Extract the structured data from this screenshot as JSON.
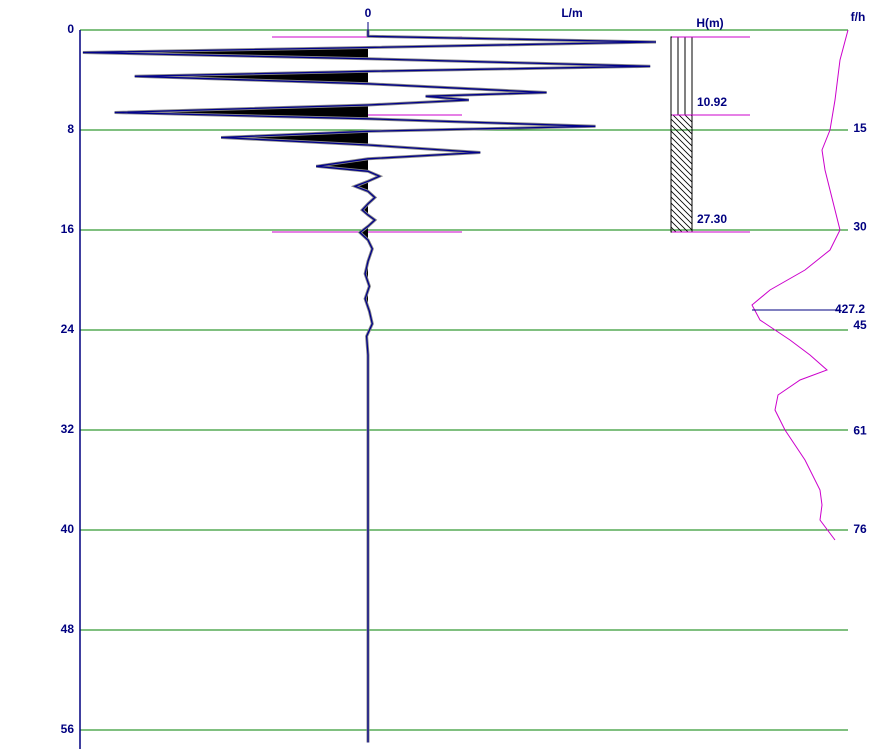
{
  "chart_data": {
    "type": "line",
    "x_label": "L/m",
    "xlim": [
      -100,
      100
    ],
    "xticks": [
      0
    ],
    "ylim": [
      0,
      57.5
    ],
    "yticks": [
      0,
      8,
      16,
      24,
      32,
      40,
      48,
      56
    ],
    "grid": true,
    "series": [
      {
        "color": "#00008b",
        "y": [
          0,
          0.5,
          0.96,
          1.4,
          1.8,
          2.3,
          2.9,
          3.3,
          3.7,
          4.3,
          5.0,
          5.3,
          5.6,
          6.0,
          6.6,
          7.1,
          7.7,
          8.1,
          8.6,
          9.2,
          9.8,
          10.3,
          10.9,
          11.3,
          11.7,
          12.1,
          12.5,
          12.9,
          13.4,
          13.9,
          14.4,
          14.8,
          15.2,
          15.7,
          16.2,
          16.8,
          17.5,
          18.5,
          19.5,
          20.5,
          21.5,
          22.5,
          23.5,
          24.5,
          26,
          57
        ],
        "values": [
          0,
          0,
          100,
          0,
          -99,
          0,
          98,
          0,
          -81,
          0,
          62,
          20,
          35,
          0,
          -88,
          0,
          79,
          0,
          -51,
          0,
          39,
          0,
          -18,
          0,
          4,
          0,
          -4.5,
          0,
          2.4,
          0,
          -2,
          0,
          2.4,
          0,
          -2.8,
          0,
          1.5,
          0,
          -1,
          0.5,
          -1,
          0.5,
          1.5,
          -0.5,
          0,
          0
        ]
      }
    ],
    "y2_label": "f/h",
    "y2lim": [
      0,
      109.25
    ],
    "y2ticks": [
      15,
      30,
      45,
      61,
      76
    ],
    "profile": {
      "color": "#cc00cc",
      "xlim": [
        0,
        100
      ],
      "y": [
        0,
        2.4,
        5.6,
        8,
        9.6,
        11.2,
        12.8,
        14.4,
        16,
        17.6,
        19.2,
        20.8,
        22,
        23.2,
        24.8,
        26,
        27.2,
        28,
        29.2,
        30.4,
        32,
        34.4,
        36.8,
        38,
        39.2,
        40.8
      ],
      "values": [
        98.2,
        90.9,
        86.4,
        81.8,
        74.5,
        77.3,
        81.8,
        86.4,
        90.9,
        81.8,
        59.1,
        27.3,
        10.9,
        18.2,
        45.5,
        63.6,
        79.1,
        54.5,
        34.5,
        31.8,
        40.9,
        59.1,
        72.7,
        74.5,
        72.7,
        86.4
      ]
    },
    "annotation": {
      "value": 427.2,
      "y": 22.4
    },
    "h_label": "H(m)",
    "hlim": [
      0,
      27.3
    ],
    "h_markers": [
      10.92,
      {
        "value": 27.3,
        "label": "27.30"
      }
    ]
  }
}
